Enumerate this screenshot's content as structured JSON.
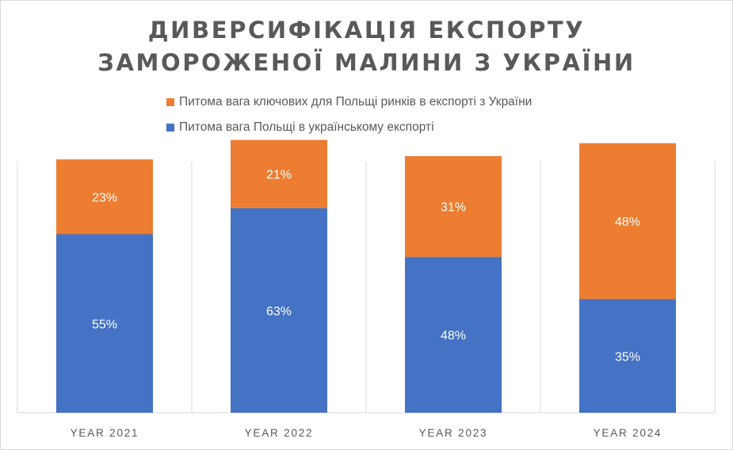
{
  "chart_data": {
    "type": "bar",
    "stacked": true,
    "title_line1": "ДИВЕРСИФІКАЦІЯ ЕКСПОРТУ",
    "title_line2": "ЗАМОРОЖЕНОЇ МАЛИНИ З УКРАЇНИ",
    "categories": [
      "YEAR 2021",
      "YEAR 2022",
      "YEAR 2023",
      "YEAR 2024"
    ],
    "series": [
      {
        "name": "Питома вага Польщі в українському експорті",
        "values": [
          55,
          63,
          48,
          35
        ],
        "labels": [
          "55%",
          "63%",
          "48%",
          "35%"
        ],
        "color": "#4472c4"
      },
      {
        "name": "Питома вага ключових для Польщі ринків в експорті з України",
        "values": [
          23,
          21,
          31,
          48
        ],
        "labels": [
          "23%",
          "21%",
          "31%",
          "48%"
        ],
        "color": "#ed7d31"
      }
    ],
    "ylim": [
      0,
      100
    ],
    "legend_position": "top",
    "grid": "vertical separators"
  },
  "legend": {
    "items": [
      {
        "label": "Питома вага ключових для Польщі ринків в експорті з України",
        "color": "#ed7d31"
      },
      {
        "label": "Питома вага Польщі в українському експорті",
        "color": "#4472c4"
      }
    ]
  }
}
